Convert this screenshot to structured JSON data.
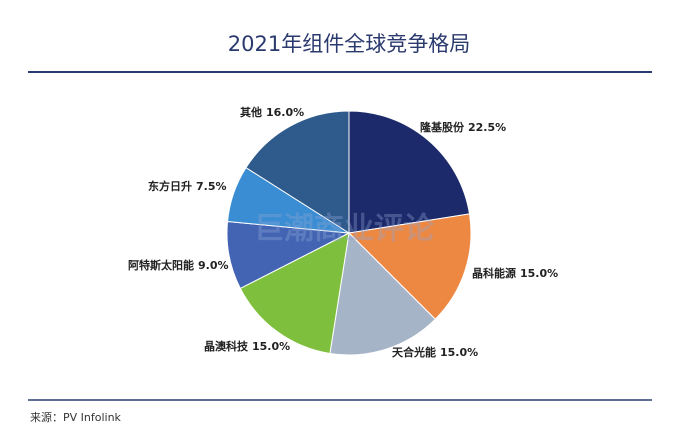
{
  "chart_data": {
    "type": "pie",
    "title": "2021年组件全球竞争格局",
    "categories": [
      "隆基股份",
      "晶科能源",
      "天合光能",
      "晶澳科技",
      "阿特斯太阳能",
      "东方日升",
      "其他"
    ],
    "values": [
      22.5,
      15.0,
      15.0,
      15.0,
      9.0,
      7.5,
      16.0
    ],
    "value_labels": [
      "22.5%",
      "15.0%",
      "15.0%",
      "15.0%",
      "9.0%",
      "7.5%",
      "16.0%"
    ],
    "colors": [
      "#1c2a6b",
      "#ed8843",
      "#a6b4c7",
      "#7ebf3d",
      "#4264b2",
      "#3a8dd2",
      "#2e5a8c"
    ],
    "watermark": "巨潮商业评论",
    "source": "来源：PV Infolink"
  }
}
